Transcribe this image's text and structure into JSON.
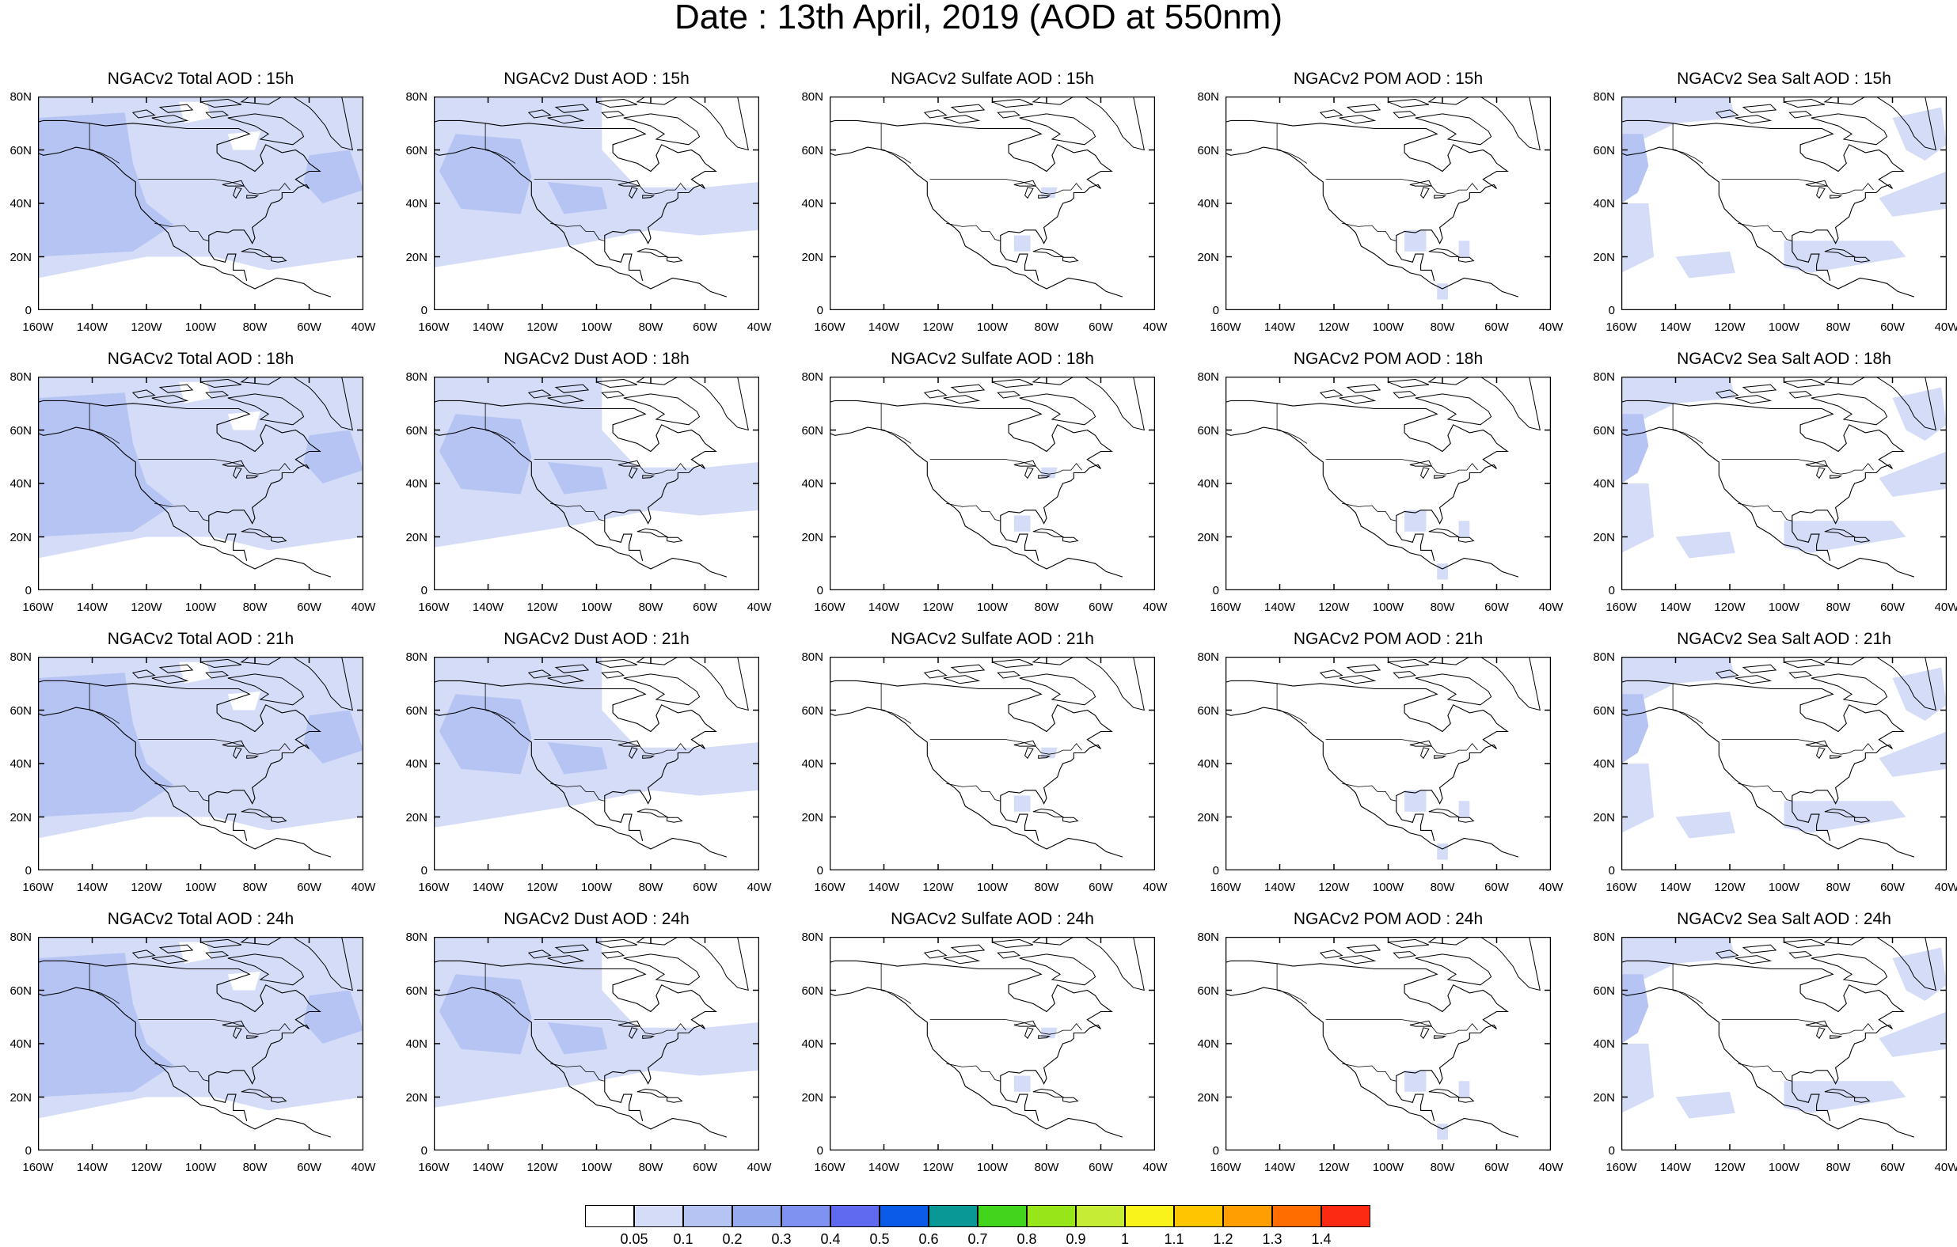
{
  "title": "Date : 13th April, 2019 (AOD at 550nm)",
  "panels": [
    {
      "title": "NGACv2 Total AOD : 15h",
      "species": "total"
    },
    {
      "title": "NGACv2 Dust AOD : 15h",
      "species": "dust"
    },
    {
      "title": "NGACv2 Sulfate AOD : 15h",
      "species": "sulfate"
    },
    {
      "title": "NGACv2 POM AOD : 15h",
      "species": "pom"
    },
    {
      "title": "NGACv2 Sea Salt AOD : 15h",
      "species": "seasalt"
    },
    {
      "title": "NGACv2 Total AOD : 18h",
      "species": "total"
    },
    {
      "title": "NGACv2 Dust AOD : 18h",
      "species": "dust"
    },
    {
      "title": "NGACv2 Sulfate AOD : 18h",
      "species": "sulfate"
    },
    {
      "title": "NGACv2 POM AOD : 18h",
      "species": "pom"
    },
    {
      "title": "NGACv2 Sea Salt AOD : 18h",
      "species": "seasalt"
    },
    {
      "title": "NGACv2 Total AOD : 21h",
      "species": "total"
    },
    {
      "title": "NGACv2 Dust AOD : 21h",
      "species": "dust"
    },
    {
      "title": "NGACv2 Sulfate AOD : 21h",
      "species": "sulfate"
    },
    {
      "title": "NGACv2 POM AOD : 21h",
      "species": "pom"
    },
    {
      "title": "NGACv2 Sea Salt AOD : 21h",
      "species": "seasalt"
    },
    {
      "title": "NGACv2 Total AOD : 24h",
      "species": "total"
    },
    {
      "title": "NGACv2 Dust AOD : 24h",
      "species": "dust"
    },
    {
      "title": "NGACv2 Sulfate AOD : 24h",
      "species": "sulfate"
    },
    {
      "title": "NGACv2 POM AOD : 24h",
      "species": "pom"
    },
    {
      "title": "NGACv2 Sea Salt  AOD : 24h",
      "species": "seasalt"
    }
  ],
  "lat_ticks": [
    "80N",
    "60N",
    "40N",
    "20N",
    "0"
  ],
  "lon_ticks": [
    "160W",
    "140W",
    "120W",
    "100W",
    "80W",
    "60W",
    "40W"
  ],
  "colorbar": {
    "labels": [
      "0.05",
      "0.1",
      "0.2",
      "0.3",
      "0.4",
      "0.5",
      "0.6",
      "0.7",
      "0.8",
      "0.9",
      "1",
      "1.1",
      "1.2",
      "1.3",
      "1.4"
    ],
    "colors": [
      "#ffffff",
      "#d4dcf7",
      "#b6c4f3",
      "#96aaf0",
      "#7f91f1",
      "#5f6af0",
      "#0b5be8",
      "#0a9896",
      "#41d61b",
      "#97e61a",
      "#c6ec36",
      "#f9f21b",
      "#ffc500",
      "#ff9e00",
      "#ff6c00",
      "#fc2a13"
    ]
  },
  "colors": {
    "aod_low": "#d4dcf7",
    "aod_mid": "#b6c4f3",
    "coastline": "#000000"
  }
}
